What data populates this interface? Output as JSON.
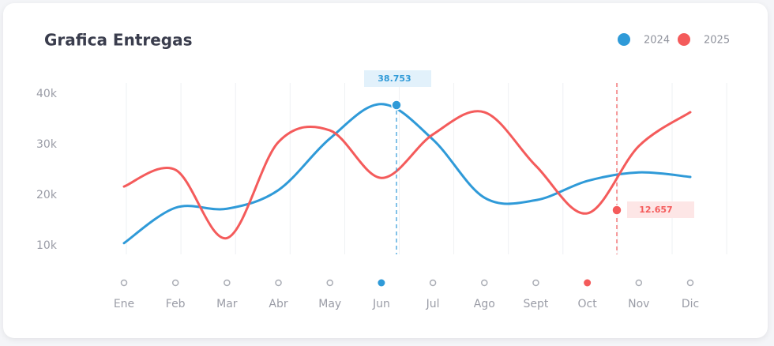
{
  "chart_data": {
    "type": "line",
    "title": "Grafica Entregas",
    "categories": [
      "Ene",
      "Feb",
      "Mar",
      "Abr",
      "May",
      "Jun",
      "Jul",
      "Ago",
      "Sept",
      "Oct",
      "Nov",
      "Dic"
    ],
    "series": [
      {
        "name": "2024",
        "color": "#2f9ad8",
        "values": [
          10500,
          17500,
          17300,
          21000,
          31200,
          38000,
          31000,
          19500,
          19000,
          22800,
          24500,
          23600
        ]
      },
      {
        "name": "2025",
        "color": "#f45b5b",
        "values": [
          21700,
          25000,
          11500,
          30500,
          32800,
          23400,
          32000,
          36400,
          25800,
          16400,
          29700,
          36400
        ]
      }
    ],
    "ylim": [
      10000,
      40000
    ],
    "yticks": [
      {
        "value": 10000,
        "label": "10k"
      },
      {
        "value": 20000,
        "label": "20k"
      },
      {
        "value": 30000,
        "label": "30k"
      },
      {
        "value": 40000,
        "label": "40k"
      }
    ],
    "grid": true,
    "legend": "top-right",
    "annotations": [
      "38.753",
      "12.657"
    ]
  }
}
